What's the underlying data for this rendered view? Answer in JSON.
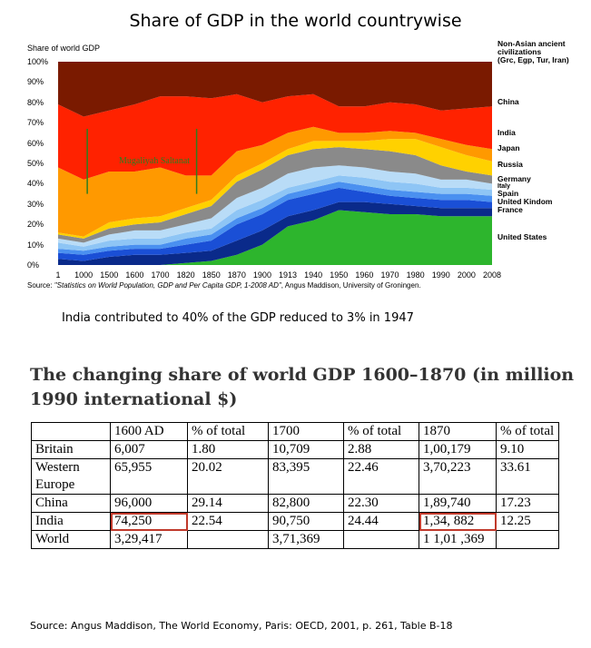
{
  "chart_data": {
    "type": "area",
    "title": "Share of GDP in the world countrywise",
    "ylabel": "Share of world GDP",
    "ylim": [
      0,
      100
    ],
    "y_ticks": [
      "100%",
      "90%",
      "80%",
      "70%",
      "60%",
      "50%",
      "40%",
      "30%",
      "20%",
      "10%",
      "0%"
    ],
    "x": [
      "1",
      "1000",
      "1500",
      "1600",
      "1700",
      "1820",
      "1850",
      "1870",
      "1900",
      "1913",
      "1940",
      "1950",
      "1960",
      "1970",
      "1980",
      "1990",
      "2000",
      "2008"
    ],
    "series": [
      {
        "name": "United States",
        "color": "#2db52d",
        "values": [
          0,
          0,
          0,
          0,
          0,
          1,
          2,
          5,
          10,
          19,
          22,
          27,
          26,
          25,
          25,
          24,
          24,
          24
        ]
      },
      {
        "name": "France",
        "color": "#0a2a8a",
        "values": [
          3,
          2,
          4,
          5,
          5,
          5,
          5,
          7,
          7,
          5,
          5,
          4,
          5,
          5,
          4,
          4,
          4,
          4
        ]
      },
      {
        "name": "United Kindom",
        "color": "#1a4fd6",
        "values": [
          3,
          3,
          3,
          3,
          3,
          4,
          5,
          8,
          8,
          8,
          8,
          7,
          5,
          4,
          4,
          4,
          4,
          3
        ]
      },
      {
        "name": "Spain",
        "color": "#4a90f0",
        "values": [
          2,
          2,
          2,
          2,
          2,
          3,
          3,
          3,
          3,
          3,
          3,
          3,
          3,
          3,
          3,
          3,
          3,
          3
        ]
      },
      {
        "name": "Italy",
        "color": "#8ec5f5",
        "values": [
          3,
          2,
          3,
          3,
          3,
          3,
          3,
          4,
          4,
          3,
          3,
          3,
          4,
          4,
          4,
          3,
          3,
          3
        ]
      },
      {
        "name": "Germany",
        "color": "#b9dcf7",
        "values": [
          2,
          2,
          3,
          4,
          4,
          4,
          5,
          6,
          6,
          7,
          7,
          5,
          5,
          5,
          5,
          4,
          4,
          3
        ]
      },
      {
        "name": "Russia",
        "color": "#8a8a8a",
        "values": [
          2,
          2,
          3,
          3,
          4,
          5,
          6,
          8,
          9,
          9,
          9,
          9,
          9,
          10,
          9,
          7,
          4,
          4
        ]
      },
      {
        "name": "Japan",
        "color": "#ffd100",
        "values": [
          1,
          1,
          3,
          3,
          3,
          3,
          3,
          3,
          3,
          3,
          4,
          3,
          4,
          6,
          8,
          9,
          8,
          7
        ]
      },
      {
        "name": "India",
        "color": "#ff9900",
        "values": [
          32,
          28,
          25,
          23,
          24,
          16,
          12,
          12,
          9,
          8,
          7,
          4,
          4,
          4,
          3,
          4,
          5,
          6
        ]
      },
      {
        "name": "China",
        "color": "#ff2200",
        "values": [
          31,
          31,
          30,
          33,
          35,
          39,
          38,
          28,
          21,
          18,
          16,
          13,
          13,
          14,
          14,
          14,
          18,
          21
        ]
      },
      {
        "name": "Non-Asian ancient civilizations (Grc, Egp, Tur, Iran)",
        "color": "#7a1a00",
        "values": [
          21,
          27,
          24,
          21,
          17,
          17,
          18,
          16,
          20,
          17,
          16,
          22,
          22,
          20,
          21,
          24,
          23,
          22
        ]
      }
    ],
    "legend": [
      "Non-Asian ancient",
      "civilizations",
      "(Grc, Egp, Tur, Iran)",
      "China",
      "India",
      "Japan",
      "Russia",
      "Germany",
      "Italy",
      "Spain",
      "United Kindom",
      "France",
      "United States"
    ],
    "annotation": "Mugaliyah Saltanat",
    "source_prefix": "Source: ",
    "source_italic": "\"Statistics on World Population, GDP and Per Capita GDP, 1-2008 AD\"",
    "source_suffix": ", Angus Maddison, University of Groningen."
  },
  "caption": "India contributed to 40% of the GDP reduced to 3% in 1947",
  "table": {
    "title": "The changing share of world GDP 1600–1870 (in million 1990 international $)",
    "headers": [
      "",
      "1600 AD",
      "% of total",
      "1700",
      "% of total",
      "1870",
      "% of total"
    ],
    "rows": [
      {
        "name": "Britain",
        "v1600": "6,007",
        "p1600": "1.80",
        "v1700": "10,709",
        "p1700": "2.88",
        "v1870": "1,00,179",
        "p1870": "9.10"
      },
      {
        "name": "Western Europe",
        "v1600": "65,955",
        "p1600": "20.02",
        "v1700": "83,395",
        "p1700": "22.46",
        "v1870": "3,70,223",
        "p1870": "33.61"
      },
      {
        "name": "China",
        "v1600": "96,000",
        "p1600": "29.14",
        "v1700": "82,800",
        "p1700": "22.30",
        "v1870": "1,89,740",
        "p1870": "17.23"
      },
      {
        "name": "India",
        "v1600": "74,250",
        "p1600": "22.54",
        "v1700": "90,750",
        "p1700": "24.44",
        "v1870": "1,34, 882",
        "p1870": "12.25"
      },
      {
        "name": "World",
        "v1600": "3,29,417",
        "p1600": "",
        "v1700": "3,71,369",
        "p1700": "",
        "v1870": "1 1,01 ,369",
        "p1870": ""
      }
    ],
    "source": "Source: Angus Maddison, The World Economy, Paris: OECD, 2001, p. 261, Table B-18"
  }
}
